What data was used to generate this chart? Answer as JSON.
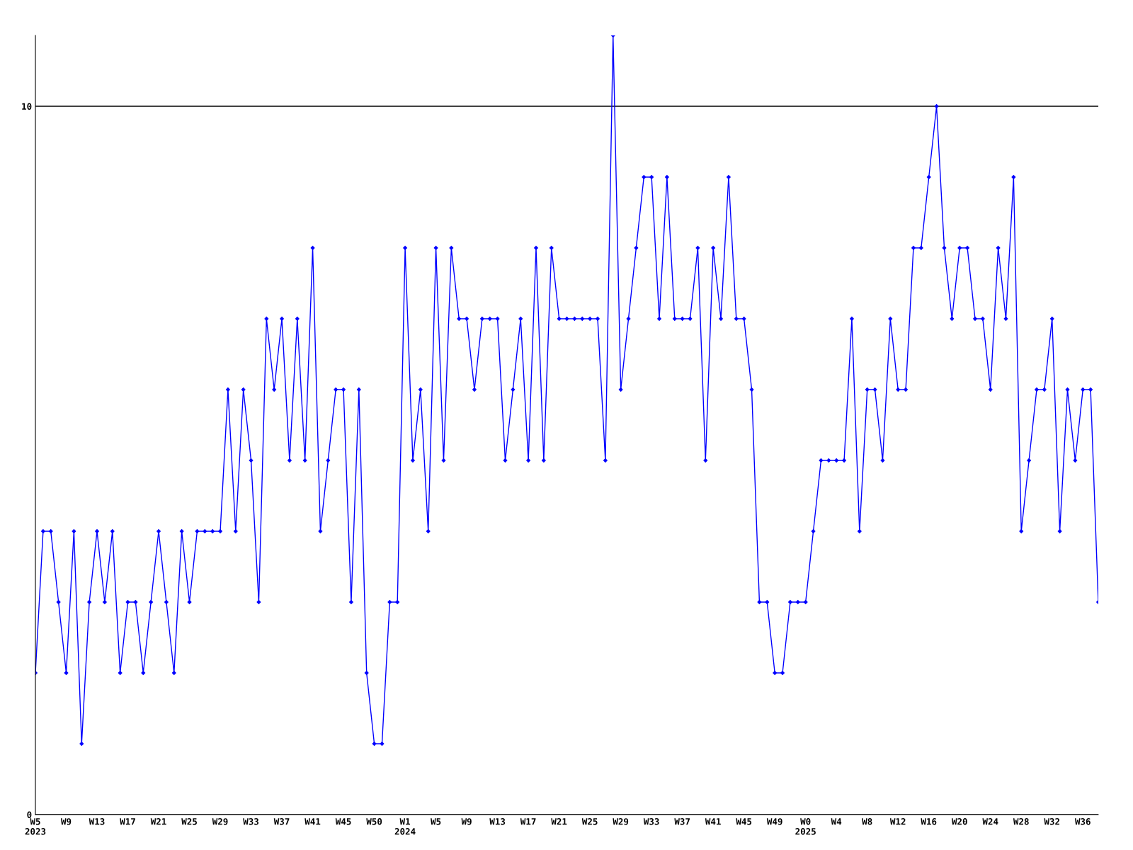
{
  "chart_data": {
    "type": "line",
    "categories": [
      "W5\n2023",
      null,
      null,
      null,
      "W9",
      null,
      null,
      null,
      "W13",
      null,
      null,
      null,
      "W17",
      null,
      null,
      null,
      "W21",
      null,
      null,
      null,
      "W25",
      null,
      null,
      null,
      "W29",
      null,
      null,
      null,
      "W33",
      null,
      null,
      null,
      "W37",
      null,
      null,
      null,
      "W41",
      null,
      null,
      null,
      "W45",
      null,
      null,
      null,
      "W50",
      null,
      null,
      null,
      "W1\n2024",
      null,
      null,
      null,
      "W5",
      null,
      null,
      null,
      "W9",
      null,
      null,
      null,
      "W13",
      null,
      null,
      null,
      "W17",
      null,
      null,
      null,
      "W21",
      null,
      null,
      null,
      "W25",
      null,
      null,
      null,
      "W29",
      null,
      null,
      null,
      "W33",
      null,
      null,
      null,
      "W37",
      null,
      null,
      null,
      "W41",
      null,
      null,
      null,
      "W45",
      null,
      null,
      null,
      "W49",
      null,
      null,
      null,
      "W0\n2025",
      null,
      null,
      null,
      "W4",
      null,
      null,
      null,
      "W8",
      null,
      null,
      null,
      "W12",
      null,
      null,
      null,
      "W16",
      null,
      null,
      null,
      "W20",
      null,
      null,
      null,
      "W24",
      null,
      null,
      null,
      "W28",
      null,
      null,
      null,
      "W32",
      null,
      null,
      null,
      "W36",
      null,
      null
    ],
    "series": [
      {
        "color": "#0000ff",
        "values": [
          2,
          4,
          4,
          3,
          2,
          4,
          1,
          3,
          4,
          3,
          4,
          2,
          3,
          3,
          2,
          3,
          4,
          3,
          2,
          4,
          3,
          4,
          4,
          4,
          4,
          6,
          4,
          6,
          5,
          3,
          7,
          6,
          7,
          5,
          7,
          5,
          8,
          4,
          5,
          6,
          6,
          3,
          6,
          2,
          1,
          1,
          3,
          3,
          8,
          5,
          6,
          4,
          8,
          5,
          8,
          7,
          7,
          6,
          7,
          7,
          7,
          5,
          6,
          7,
          5,
          8,
          5,
          8,
          7,
          7,
          7,
          7,
          7,
          7,
          5,
          11,
          6,
          7,
          8,
          9,
          9,
          7,
          9,
          7,
          7,
          7,
          8,
          5,
          8,
          7,
          9,
          7,
          7,
          6,
          3,
          3,
          2,
          2,
          3,
          3,
          3,
          4,
          5,
          5,
          5,
          5,
          7,
          4,
          6,
          6,
          5,
          7,
          6,
          6,
          8,
          8,
          9,
          10,
          8,
          7,
          8,
          8,
          7,
          7,
          6,
          8,
          7,
          9,
          4,
          5,
          6,
          6,
          7,
          4,
          6,
          5,
          6,
          6,
          3
        ]
      }
    ],
    "ylim": [
      0,
      11
    ],
    "yticks": [
      0,
      10
    ],
    "grid": "y",
    "marker": "diamond",
    "line_style": "solid"
  }
}
